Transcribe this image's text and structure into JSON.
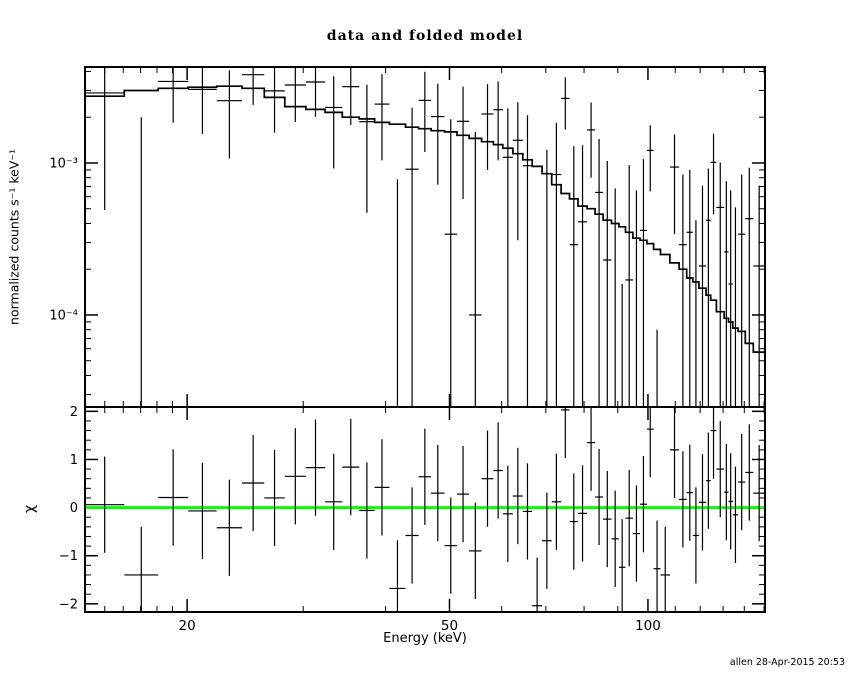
{
  "title": "data and folded model",
  "footer": "allen 28-Apr-2015 20:53",
  "colors": {
    "background": "#ffffff",
    "foreground": "#000000",
    "zero_line": "#00ff00"
  },
  "chart_data": {
    "type": "line",
    "subtype": "xspec-spectrum-with-residuals",
    "title": "data and folded model",
    "xlabel": "Energy (keV)",
    "xscale": "log",
    "xlim": [
      14.0,
      150.5
    ],
    "x_major_ticks": [
      20,
      50,
      100
    ],
    "x_major_labels": [
      "20",
      "50",
      "100"
    ],
    "x_minor_ticks": [
      15,
      16,
      17,
      18,
      19,
      30,
      40,
      60,
      70,
      80,
      90,
      110,
      120,
      130,
      140,
      150
    ],
    "panels": [
      {
        "name": "data and folded model",
        "ylabel": "normalized counts s⁻¹ keV⁻¹",
        "yscale": "log",
        "ylim": [
          2.48e-05,
          0.00428
        ],
        "y_major_ticks": [
          0.001,
          0.0001
        ],
        "y_major_labels": [
          "10⁻³",
          "10⁻⁴"
        ],
        "grid": false,
        "series": [
          {
            "name": "data",
            "style": "error-cross",
            "color": "#000000"
          },
          {
            "name": "folded model",
            "style": "step-histogram",
            "color": "#000000"
          }
        ]
      },
      {
        "name": "residuals",
        "ylabel": "χ",
        "yscale": "linear",
        "ylim": [
          -2.17,
          2.09
        ],
        "y_major_ticks": [
          -2,
          -1,
          0,
          1,
          2
        ],
        "y_major_labels": [
          "−2",
          "−1",
          "0",
          "1",
          "2"
        ],
        "y_minor_step": 0.2,
        "grid": false,
        "zero_line_color": "#00ff00",
        "series": [
          {
            "name": "chi residuals",
            "style": "error-cross",
            "color": "#000000"
          },
          {
            "name": "zero line",
            "style": "line",
            "color": "#00ff00"
          }
        ]
      }
    ],
    "bins": {
      "energy_kev": [
        15.0,
        17.2,
        19.0,
        21.2,
        23.2,
        25.3,
        27.1,
        29.2,
        31.4,
        33.4,
        35.4,
        37.6,
        39.4,
        41.7,
        44.1,
        45.7,
        48.1,
        50.2,
        52.5,
        54.6,
        57.3,
        59.3,
        61.2,
        63.6,
        65.6,
        67.9,
        70.3,
        72.6,
        75.1,
        77.0,
        79.7,
        82.0,
        84.3,
        86.7,
        89.4,
        91.3,
        93.6,
        96.2,
        98.3,
        101,
        103,
        106,
        110,
        113,
        116,
        118,
        121,
        124,
        125,
        129,
        132,
        133,
        136,
        138,
        143,
        146
      ],
      "model_counts": [
        0.00275,
        0.003,
        0.0031,
        0.00315,
        0.0032,
        0.0031,
        0.0027,
        0.00235,
        0.00225,
        0.00215,
        0.002,
        0.00195,
        0.00185,
        0.0018,
        0.00172,
        0.00168,
        0.00163,
        0.0016,
        0.00152,
        0.00145,
        0.00138,
        0.00132,
        0.00125,
        0.00115,
        0.00105,
        0.00095,
        0.00085,
        0.00072,
        0.00063,
        0.00058,
        0.00052,
        0.0005,
        0.00046,
        0.00042,
        0.0004,
        0.00038,
        0.00035,
        0.00032,
        0.00031,
        0.000295,
        0.00027,
        0.00025,
        0.00022,
        0.0002,
        0.000175,
        0.000165,
        0.00015,
        0.000135,
        0.000125,
        0.000105,
        9.5e-05,
        9e-05,
        8.2e-05,
        7.8e-05,
        6.5e-05,
        5.7e-05
      ],
      "data_counts": [
        0.00289,
        -0.0005,
        0.00344,
        0.00305,
        0.00257,
        0.00381,
        0.00298,
        0.00326,
        0.00341,
        0.00232,
        0.00318,
        0.00187,
        0.00244,
        -0.00072,
        0.00091,
        0.00258,
        0.00202,
        0.00034,
        0.00188,
        0.0001,
        0.0021,
        0.00224,
        0.00109,
        0.00141,
        0.00096,
        -0.00211,
        2e-05,
        0.00084,
        0.00266,
        0.00029,
        0.00041,
        0.00165,
        0.00064,
        0.00023,
        -0.00012,
        -0.00074,
        0.00017,
        -9e-05,
        0.00036,
        0.00121,
        -0.00062,
        -0.0008,
        0.00094,
        0.00029,
        0.00035,
        -0.00018,
        0.00021,
        0.00042,
        0.00101,
        0.00051,
        0.00026,
        0.00016,
        1e-05,
        0.00034,
        0.00043,
        0.00021
      ],
      "data_sigma": [
        0.0024,
        0.0025,
        0.0016,
        0.0015,
        0.0015,
        0.0014,
        0.0014,
        0.0014,
        0.0014,
        0.0014,
        0.0014,
        0.0014,
        0.0014,
        0.0015,
        0.0014,
        0.0014,
        0.0013,
        0.0016,
        0.0013,
        0.0015,
        0.0012,
        0.0012,
        0.0012,
        0.0011,
        0.0011,
        0.0015,
        0.0012,
        0.001,
        0.001,
        0.001,
        0.0009,
        0.00085,
        0.0008,
        0.0008,
        0.0008,
        0.0009,
        0.0008,
        0.00075,
        0.0007,
        0.00056,
        0.0007,
        0.00075,
        0.0006,
        0.00055,
        0.00055,
        0.0006,
        0.0005,
        0.0005,
        0.00055,
        0.0005,
        0.0005,
        0.0005,
        0.0005,
        0.0005,
        0.0005,
        0.0005
      ],
      "chi": [
        0.06,
        -1.4,
        0.21,
        -0.07,
        -0.42,
        0.51,
        0.2,
        0.65,
        0.83,
        0.12,
        0.84,
        -0.06,
        0.42,
        -1.68,
        -0.58,
        0.64,
        0.3,
        -0.79,
        0.28,
        -0.9,
        0.6,
        0.77,
        -0.13,
        0.24,
        -0.08,
        -2.04,
        -0.69,
        0.12,
        2.03,
        -0.29,
        -0.12,
        1.35,
        0.22,
        -0.24,
        -0.65,
        -1.24,
        -0.22,
        -0.54,
        0.07,
        1.63,
        -1.27,
        -1.4,
        1.2,
        0.17,
        0.31,
        -0.58,
        0.11,
        0.56,
        1.6,
        0.8,
        0.32,
        0.13,
        -0.15,
        0.53,
        0.73,
        0.3
      ],
      "chi_error": 1.0
    }
  }
}
